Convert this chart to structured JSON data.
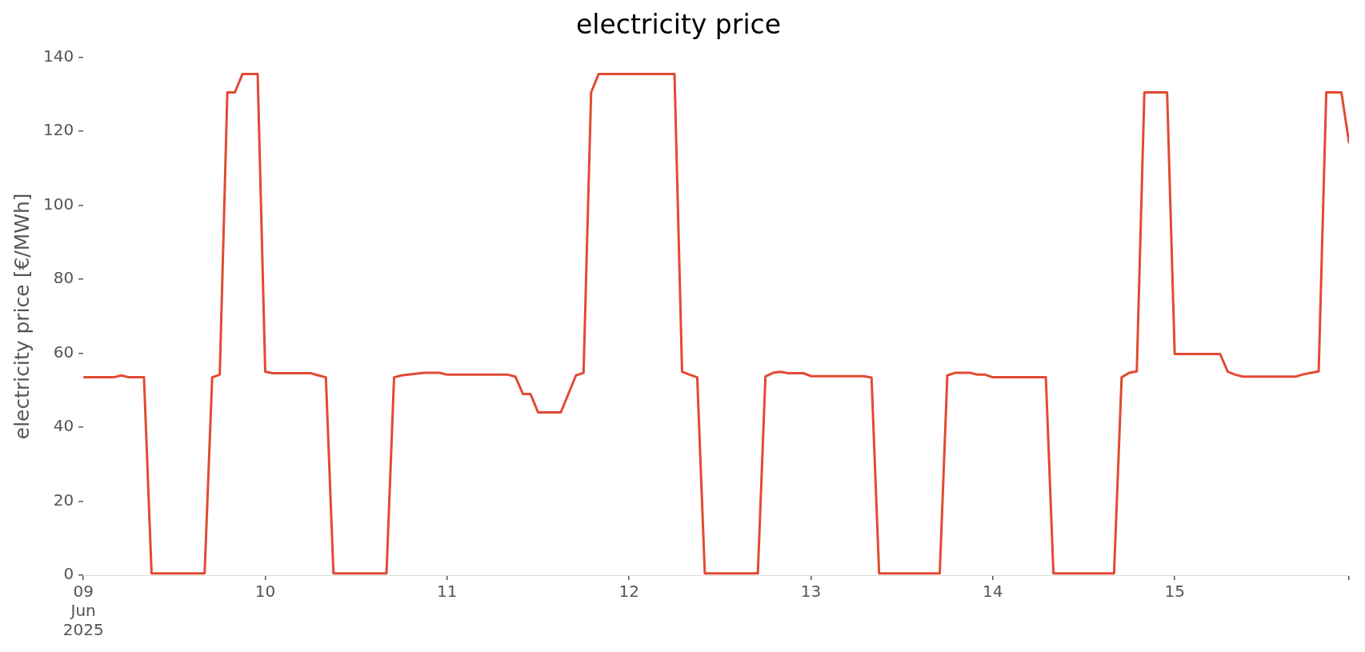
{
  "chart_data": {
    "type": "line",
    "title": "electricity price",
    "ylabel": "electricity price [€/MWh]",
    "x": [
      "2025-06-09T00:00",
      "2025-06-09T04:00",
      "2025-06-09T05:00",
      "2025-06-09T06:00",
      "2025-06-09T08:00",
      "2025-06-09T09:00",
      "2025-06-09T16:00",
      "2025-06-09T17:00",
      "2025-06-09T18:00",
      "2025-06-09T19:00",
      "2025-06-09T20:00",
      "2025-06-09T21:00",
      "2025-06-09T23:00",
      "2025-06-10T00:00",
      "2025-06-10T01:00",
      "2025-06-10T06:00",
      "2025-06-10T07:00",
      "2025-06-10T08:00",
      "2025-06-10T09:00",
      "2025-06-10T16:00",
      "2025-06-10T17:00",
      "2025-06-10T18:00",
      "2025-06-10T20:00",
      "2025-06-10T21:00",
      "2025-06-10T23:00",
      "2025-06-11T00:00",
      "2025-06-11T08:00",
      "2025-06-11T09:00",
      "2025-06-11T10:00",
      "2025-06-11T11:00",
      "2025-06-11T12:00",
      "2025-06-11T15:00",
      "2025-06-11T17:00",
      "2025-06-11T18:00",
      "2025-06-11T19:00",
      "2025-06-11T20:00",
      "2025-06-12T06:00",
      "2025-06-12T07:00",
      "2025-06-12T08:00",
      "2025-06-12T09:00",
      "2025-06-12T10:00",
      "2025-06-12T17:00",
      "2025-06-12T18:00",
      "2025-06-12T19:00",
      "2025-06-12T20:00",
      "2025-06-12T21:00",
      "2025-06-12T23:00",
      "2025-06-13T00:00",
      "2025-06-13T07:00",
      "2025-06-13T08:00",
      "2025-06-13T09:00",
      "2025-06-13T17:00",
      "2025-06-13T18:00",
      "2025-06-13T19:00",
      "2025-06-13T21:00",
      "2025-06-13T22:00",
      "2025-06-13T23:00",
      "2025-06-14T00:00",
      "2025-06-14T07:00",
      "2025-06-14T08:00",
      "2025-06-14T16:00",
      "2025-06-14T17:00",
      "2025-06-14T18:00",
      "2025-06-14T19:00",
      "2025-06-14T20:00",
      "2025-06-14T23:00",
      "2025-06-15T00:00",
      "2025-06-15T06:00",
      "2025-06-15T07:00",
      "2025-06-15T08:00",
      "2025-06-15T09:00",
      "2025-06-15T16:00",
      "2025-06-15T17:00",
      "2025-06-15T18:00",
      "2025-06-15T19:00",
      "2025-06-15T20:00",
      "2025-06-15T22:00",
      "2025-06-15T23:00"
    ],
    "series": [
      {
        "color": "#e24a33",
        "values": [
          53.5,
          53.5,
          54,
          53.5,
          53.5,
          0.5,
          0.5,
          53.5,
          54.2,
          130.5,
          130.5,
          135.5,
          135.5,
          55,
          54.6,
          54.6,
          54,
          53.5,
          0.5,
          0.5,
          53.5,
          54,
          54.5,
          54.7,
          54.7,
          54.2,
          54.2,
          53.7,
          49,
          49,
          44,
          44,
          54,
          54.7,
          130.5,
          135.5,
          135.5,
          55,
          54.2,
          53.5,
          0.5,
          0.5,
          53.7,
          54.7,
          55,
          54.6,
          54.6,
          53.8,
          53.8,
          53.4,
          0.5,
          0.5,
          54,
          54.7,
          54.7,
          54.2,
          54.2,
          53.5,
          53.5,
          0.5,
          0.5,
          53.5,
          54.7,
          55.1,
          130.5,
          130.5,
          59.8,
          59.8,
          55,
          54.2,
          53.7,
          53.7,
          54.3,
          54.7,
          55.1,
          130.5,
          130.5,
          117
        ]
      }
    ],
    "xticks": [
      {
        "value": "2025-06-09",
        "label": "09\nJun\n2025"
      },
      {
        "value": "2025-06-10",
        "label": "10"
      },
      {
        "value": "2025-06-11",
        "label": "11"
      },
      {
        "value": "2025-06-12",
        "label": "12"
      },
      {
        "value": "2025-06-13",
        "label": "13"
      },
      {
        "value": "2025-06-14",
        "label": "14"
      },
      {
        "value": "2025-06-15",
        "label": "15"
      },
      {
        "value": "2025-06-15T23:00",
        "label": null
      }
    ],
    "xlim": [
      "2025-06-09T00:00",
      "2025-06-15T23:00"
    ],
    "ylim": [
      0,
      140
    ],
    "yticks": [
      0,
      20,
      40,
      60,
      80,
      100,
      120,
      140
    ],
    "marker": "none",
    "line_style": "solid"
  }
}
